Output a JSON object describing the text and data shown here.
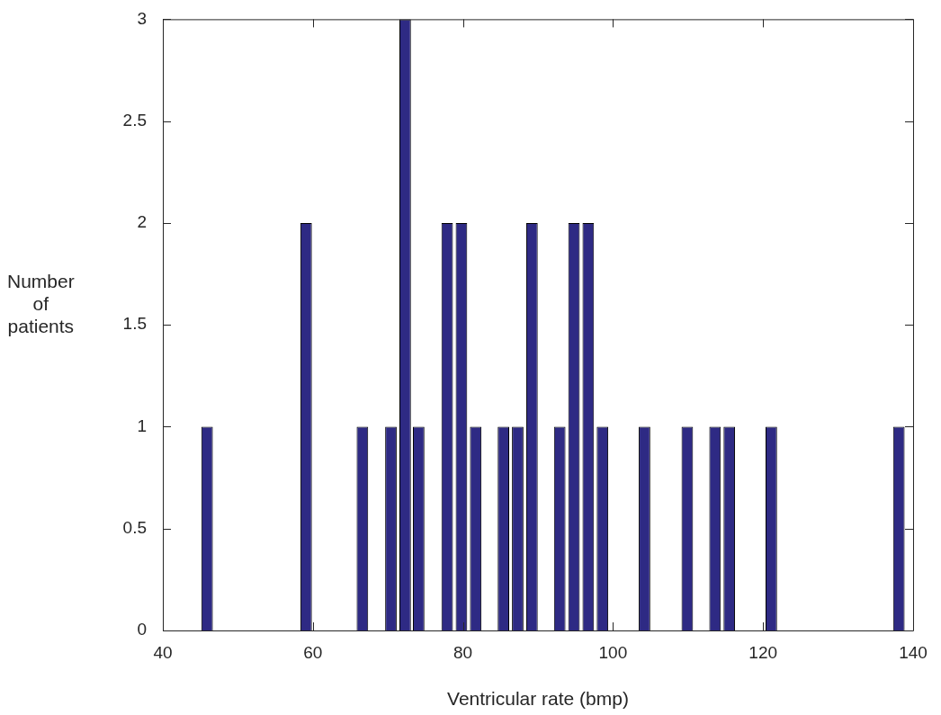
{
  "chart_data": {
    "type": "bar",
    "xlabel": "Ventricular rate (bmp)",
    "ylabel": "Number of patients",
    "x": [
      45.9,
      59.1,
      66.6,
      70.4,
      72.3,
      74.1,
      77.9,
      79.8,
      81.7,
      85.4,
      87.3,
      89.2,
      92.9,
      94.8,
      96.7,
      98.6,
      104.2,
      109.9,
      113.6,
      115.5,
      121.1,
      138.1
    ],
    "values": [
      1,
      2,
      1,
      1,
      3,
      1,
      2,
      2,
      1,
      1,
      1,
      2,
      1,
      2,
      2,
      1,
      1,
      1,
      1,
      1,
      1,
      1
    ],
    "color": "#2e2a84",
    "xlim": [
      40,
      140
    ],
    "xticks": [
      40,
      60,
      80,
      100,
      120,
      140
    ],
    "ylim": [
      0,
      3
    ],
    "yticks": [
      0,
      0.5,
      1,
      1.5,
      2,
      2.5,
      3
    ]
  }
}
